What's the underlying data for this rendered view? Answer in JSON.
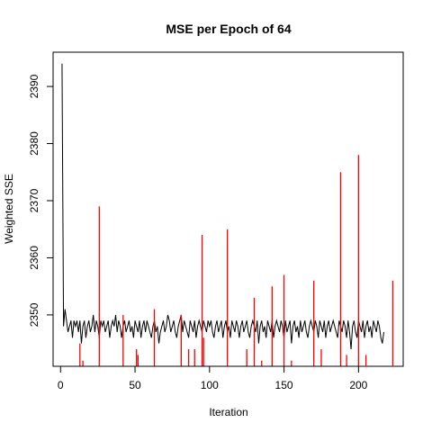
{
  "chart_data": {
    "type": "line",
    "title": "MSE per Epoch of 64",
    "xlabel": "Iteration",
    "ylabel": "Weighted SSE",
    "xlim": [
      -5,
      230
    ],
    "ylim": [
      2341,
      2396
    ],
    "x_ticks": [
      0,
      50,
      100,
      150,
      200
    ],
    "y_ticks": [
      2350,
      2360,
      2370,
      2380,
      2390
    ],
    "grid": false,
    "colors": {
      "series_black": "#000000",
      "series_red": "#ff0000"
    },
    "series": [
      {
        "color": "#000000",
        "style": "line",
        "values": [
          2394,
          2348,
          2351,
          2349,
          2347,
          2348,
          2349,
          2346,
          2349,
          2348,
          2349,
          2347,
          2349,
          2345,
          2348,
          2349,
          2346,
          2348,
          2349,
          2347,
          2348,
          2350,
          2347,
          2349,
          2348,
          2346,
          2349,
          2348,
          2349,
          2347,
          2348,
          2349,
          2346,
          2348,
          2349,
          2348,
          2350,
          2347,
          2349,
          2348,
          2346,
          2348,
          2349,
          2347,
          2348,
          2349,
          2347,
          2348,
          2346,
          2349,
          2348,
          2347,
          2349,
          2346,
          2348,
          2349,
          2347,
          2349,
          2348,
          2347,
          2346,
          2348,
          2349,
          2347,
          2348,
          2345,
          2347,
          2348,
          2349,
          2347,
          2348,
          2350,
          2349,
          2347,
          2348,
          2349,
          2347,
          2346,
          2348,
          2349,
          2350,
          2347,
          2349,
          2348,
          2347,
          2346,
          2349,
          2348,
          2347,
          2349,
          2346,
          2348,
          2349,
          2348,
          2347,
          2349,
          2348,
          2347,
          2349,
          2348,
          2349,
          2347,
          2346,
          2348,
          2349,
          2347,
          2348,
          2349,
          2346,
          2348,
          2349,
          2347,
          2348,
          2346,
          2349,
          2348,
          2347,
          2349,
          2348,
          2346,
          2348,
          2349,
          2347,
          2348,
          2349,
          2347,
          2346,
          2348,
          2349,
          2348,
          2347,
          2349,
          2345,
          2348,
          2349,
          2347,
          2348,
          2346,
          2349,
          2348,
          2347,
          2349,
          2346,
          2348,
          2349,
          2348,
          2347,
          2349,
          2348,
          2346,
          2349,
          2347,
          2348,
          2349,
          2345,
          2348,
          2349,
          2347,
          2348,
          2346,
          2349,
          2347,
          2348,
          2349,
          2347,
          2346,
          2348,
          2349,
          2348,
          2347,
          2349,
          2348,
          2346,
          2349,
          2348,
          2347,
          2349,
          2346,
          2348,
          2349,
          2347,
          2348,
          2349,
          2348,
          2347,
          2346,
          2349,
          2348,
          2347,
          2349,
          2348,
          2346,
          2349,
          2347,
          2344,
          2348,
          2349,
          2347,
          2346,
          2349,
          2348,
          2347,
          2349,
          2346,
          2348,
          2349,
          2347,
          2348,
          2346,
          2349,
          2348,
          2347,
          2349,
          2348,
          2346,
          2345,
          2347
        ]
      },
      {
        "color": "#ff0000",
        "style": "spikes",
        "points": [
          [
            13,
            2345
          ],
          [
            15,
            2342
          ],
          [
            26,
            2369
          ],
          [
            42,
            2350
          ],
          [
            51,
            2344
          ],
          [
            52,
            2343
          ],
          [
            63,
            2351
          ],
          [
            81,
            2350
          ],
          [
            86,
            2344
          ],
          [
            90,
            2344
          ],
          [
            95,
            2364
          ],
          [
            96,
            2346
          ],
          [
            112,
            2365
          ],
          [
            125,
            2344
          ],
          [
            130,
            2353
          ],
          [
            135,
            2342
          ],
          [
            142,
            2355
          ],
          [
            150,
            2357
          ],
          [
            155,
            2342
          ],
          [
            170,
            2356
          ],
          [
            175,
            2344
          ],
          [
            188,
            2375
          ],
          [
            192,
            2343
          ],
          [
            200,
            2378
          ],
          [
            205,
            2343
          ],
          [
            223,
            2356
          ]
        ]
      }
    ]
  }
}
